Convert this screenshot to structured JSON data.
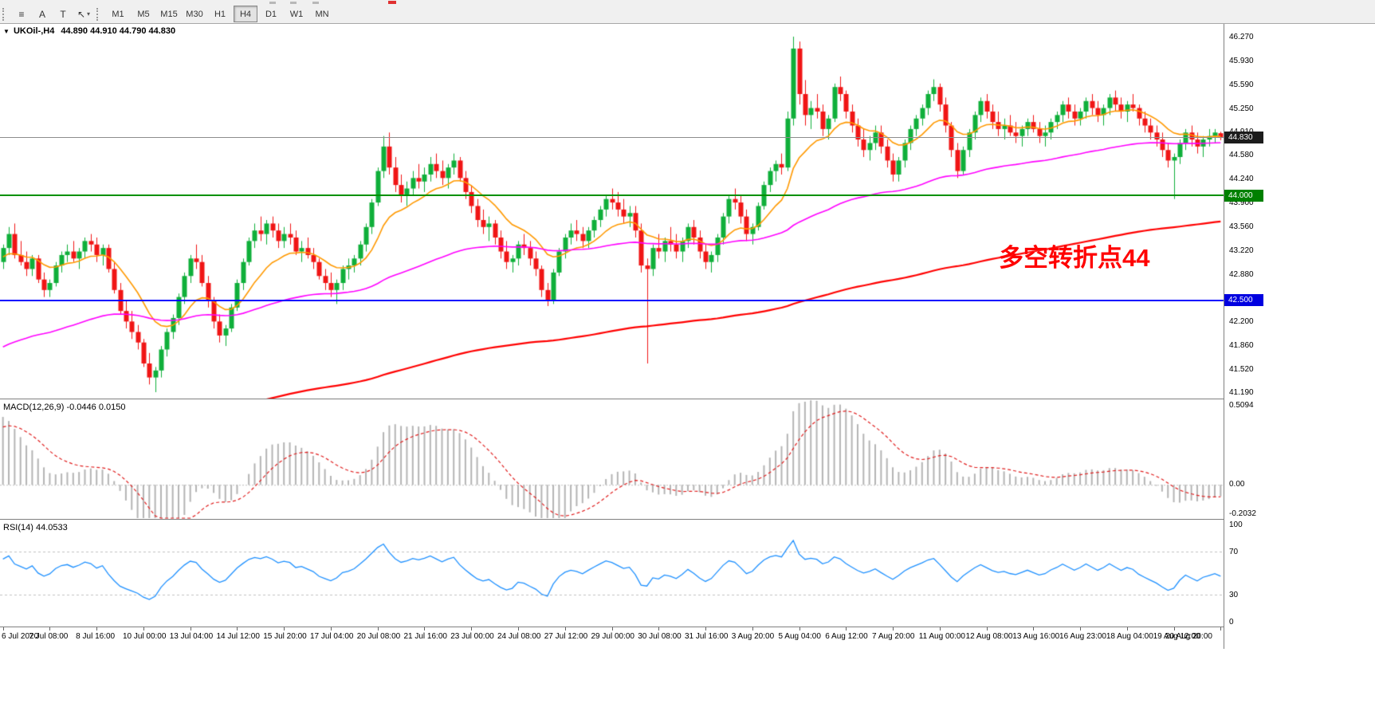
{
  "toolbar": {
    "tools": [
      {
        "name": "chart-windows-icon",
        "glyph": "≡"
      },
      {
        "name": "text-annotation-tool",
        "glyph": "A"
      },
      {
        "name": "type-tool",
        "glyph": "T"
      },
      {
        "name": "pointer-tool",
        "glyph": "↖",
        "caret": "▾"
      }
    ],
    "timeframes": [
      "M1",
      "M5",
      "M15",
      "M30",
      "H1",
      "H4",
      "D1",
      "W1",
      "MN"
    ],
    "active_timeframe": "H4"
  },
  "price_pane": {
    "symbol_label": "UKOil-,H4",
    "ohlc_label": "44.890 44.910 44.790 44.830",
    "collapse_icon": "▼",
    "axis_labels": [
      "46.270",
      "45.930",
      "45.590",
      "45.250",
      "44.910",
      "44.580",
      "44.240",
      "43.900",
      "43.560",
      "43.220",
      "42.880",
      "42.540",
      "42.200",
      "41.860",
      "41.520",
      "41.190"
    ],
    "price_tags": [
      {
        "text": "44.830",
        "price": 44.83,
        "bg": "#1c1c1c"
      },
      {
        "text": "44.000",
        "price": 44.0,
        "bg": "#008000"
      },
      {
        "text": "42.500",
        "price": 42.5,
        "bg": "#0000e0"
      }
    ],
    "hlines": [
      {
        "price": 44.83,
        "color": "#8c8c8c",
        "width": 1
      },
      {
        "price": 44.0,
        "color": "#009000",
        "width": 2
      },
      {
        "price": 42.5,
        "color": "#0000ff",
        "width": 2
      }
    ],
    "annotation": {
      "text": "多空转折点44",
      "color": "#ff0000"
    },
    "scale": {
      "pMax": 46.452,
      "pMin": 41.099
    }
  },
  "macd_pane": {
    "label": "MACD(12,26,9) -0.0446 0.0150",
    "axis_top": "0.5094",
    "axis_zero": "0.00",
    "axis_bottom": "-0.2032",
    "vMax": 0.5094,
    "vMin": -0.2032,
    "params": {
      "fast": 12,
      "slow": 26,
      "signal": 9
    }
  },
  "rsi_pane": {
    "label": "RSI(14) 44.0533",
    "axis_labels": [
      100,
      70,
      30,
      0
    ],
    "levels": [
      70,
      30
    ],
    "period": 14
  },
  "time_axis": {
    "bars_per_label": 8,
    "labels": [
      "6 Jul 2020",
      "7 Jul 08:00",
      "8 Jul 16:00",
      "10 Jul 00:00",
      "13 Jul 04:00",
      "14 Jul 12:00",
      "15 Jul 20:00",
      "17 Jul 04:00",
      "20 Jul 08:00",
      "21 Jul 16:00",
      "23 Jul 00:00",
      "24 Jul 08:00",
      "27 Jul 12:00",
      "29 Jul 00:00",
      "30 Jul 08:00",
      "31 Jul 16:00",
      "3 Aug 20:00",
      "5 Aug 04:00",
      "6 Aug 12:00",
      "7 Aug 20:00",
      "11 Aug 00:00",
      "12 Aug 08:00",
      "13 Aug 16:00",
      "16 Aug 23:00",
      "18 Aug 04:00",
      "19 Aug 12:00",
      "20 Aug 20:00"
    ]
  },
  "chart_data": {
    "type": "candlestick",
    "symbol": "UKOil-",
    "timeframe": "H4",
    "colors": {
      "up": "#0faf3a",
      "down": "#f01515",
      "ma_fast": "#ff9900",
      "ma_mid": "#ff00ff",
      "ma_slow": "#ff0000",
      "macd_hist": "#b4b4b4",
      "macd_signal": "#e01f1f",
      "rsi": "#1e90ff",
      "level_dash": "#c0c0c0"
    },
    "ma_seeds": {
      "fast": 43.1,
      "mid": 41.8,
      "slow": 40.3
    },
    "ma_alphas": {
      "fast": 0.143,
      "mid": 0.025,
      "slow": 0.0085
    },
    "macd_seeds": {
      "ema_fast": 43.4,
      "ema_slow": 42.95,
      "signal": 0.33
    },
    "candles": [
      [
        43.05,
        43.3,
        42.95,
        43.25
      ],
      [
        43.25,
        43.55,
        43.15,
        43.45
      ],
      [
        43.45,
        43.6,
        43.1,
        43.15
      ],
      [
        43.15,
        43.35,
        43.0,
        43.05
      ],
      [
        43.05,
        43.2,
        42.85,
        42.95
      ],
      [
        42.95,
        43.15,
        42.85,
        43.1
      ],
      [
        43.1,
        43.15,
        42.75,
        42.8
      ],
      [
        42.8,
        42.9,
        42.55,
        42.65
      ],
      [
        42.65,
        42.8,
        42.55,
        42.75
      ],
      [
        42.75,
        43.05,
        42.7,
        43.0
      ],
      [
        43.0,
        43.2,
        42.9,
        43.15
      ],
      [
        43.15,
        43.3,
        43.05,
        43.2
      ],
      [
        43.2,
        43.35,
        43.05,
        43.1
      ],
      [
        43.1,
        43.25,
        42.95,
        43.2
      ],
      [
        43.2,
        43.4,
        43.1,
        43.35
      ],
      [
        43.35,
        43.45,
        43.2,
        43.3
      ],
      [
        43.3,
        43.4,
        43.05,
        43.15
      ],
      [
        43.15,
        43.3,
        43.0,
        43.25
      ],
      [
        43.25,
        43.3,
        42.9,
        42.95
      ],
      [
        42.95,
        43.05,
        42.6,
        42.65
      ],
      [
        42.65,
        42.75,
        42.3,
        42.35
      ],
      [
        42.35,
        42.5,
        42.1,
        42.2
      ],
      [
        42.2,
        42.35,
        41.95,
        42.05
      ],
      [
        42.05,
        42.15,
        41.8,
        41.9
      ],
      [
        41.9,
        41.95,
        41.55,
        41.6
      ],
      [
        41.6,
        41.75,
        41.3,
        41.4
      ],
      [
        41.4,
        41.55,
        41.19,
        41.5
      ],
      [
        41.5,
        41.85,
        41.4,
        41.8
      ],
      [
        41.8,
        42.1,
        41.7,
        42.05
      ],
      [
        42.05,
        42.3,
        41.95,
        42.25
      ],
      [
        42.25,
        42.6,
        42.15,
        42.55
      ],
      [
        42.55,
        42.9,
        42.45,
        42.85
      ],
      [
        42.85,
        43.15,
        42.75,
        43.1
      ],
      [
        43.1,
        43.3,
        42.95,
        43.05
      ],
      [
        43.05,
        43.15,
        42.7,
        42.75
      ],
      [
        42.75,
        42.85,
        42.4,
        42.5
      ],
      [
        42.5,
        42.55,
        42.1,
        42.2
      ],
      [
        42.2,
        42.3,
        41.9,
        42.0
      ],
      [
        42.0,
        42.15,
        41.85,
        42.1
      ],
      [
        42.1,
        42.45,
        42.05,
        42.4
      ],
      [
        42.4,
        42.8,
        42.35,
        42.75
      ],
      [
        42.75,
        43.1,
        42.65,
        43.05
      ],
      [
        43.05,
        43.4,
        43.0,
        43.35
      ],
      [
        43.35,
        43.6,
        43.25,
        43.5
      ],
      [
        43.5,
        43.7,
        43.35,
        43.45
      ],
      [
        43.45,
        43.65,
        43.3,
        43.6
      ],
      [
        43.6,
        43.7,
        43.4,
        43.5
      ],
      [
        43.5,
        43.6,
        43.25,
        43.35
      ],
      [
        43.35,
        43.55,
        43.25,
        43.45
      ],
      [
        43.45,
        43.6,
        43.3,
        43.4
      ],
      [
        43.4,
        43.5,
        43.15,
        43.2
      ],
      [
        43.2,
        43.35,
        43.05,
        43.25
      ],
      [
        43.25,
        43.4,
        43.1,
        43.15
      ],
      [
        43.15,
        43.25,
        42.95,
        43.05
      ],
      [
        43.05,
        43.1,
        42.8,
        42.85
      ],
      [
        42.85,
        42.95,
        42.65,
        42.75
      ],
      [
        42.75,
        42.9,
        42.55,
        42.65
      ],
      [
        42.65,
        42.8,
        42.45,
        42.75
      ],
      [
        42.75,
        43.0,
        42.65,
        42.95
      ],
      [
        42.95,
        43.1,
        42.8,
        43.0
      ],
      [
        43.0,
        43.15,
        42.9,
        43.1
      ],
      [
        43.1,
        43.35,
        43.0,
        43.3
      ],
      [
        43.3,
        43.6,
        43.2,
        43.55
      ],
      [
        43.55,
        43.95,
        43.45,
        43.9
      ],
      [
        43.9,
        44.4,
        43.85,
        44.35
      ],
      [
        44.35,
        44.85,
        44.25,
        44.7
      ],
      [
        44.7,
        44.9,
        44.3,
        44.4
      ],
      [
        44.4,
        44.55,
        44.05,
        44.15
      ],
      [
        44.15,
        44.3,
        43.9,
        44.0
      ],
      [
        44.0,
        44.2,
        43.85,
        44.1
      ],
      [
        44.1,
        44.35,
        44.0,
        44.25
      ],
      [
        44.25,
        44.45,
        44.1,
        44.2
      ],
      [
        44.2,
        44.4,
        44.05,
        44.3
      ],
      [
        44.3,
        44.55,
        44.2,
        44.45
      ],
      [
        44.45,
        44.6,
        44.25,
        44.35
      ],
      [
        44.35,
        44.5,
        44.15,
        44.25
      ],
      [
        44.25,
        44.45,
        44.1,
        44.4
      ],
      [
        44.4,
        44.6,
        44.3,
        44.5
      ],
      [
        44.5,
        44.55,
        44.2,
        44.25
      ],
      [
        44.25,
        44.35,
        43.95,
        44.05
      ],
      [
        44.05,
        44.15,
        43.75,
        43.85
      ],
      [
        43.85,
        43.95,
        43.55,
        43.65
      ],
      [
        43.65,
        43.8,
        43.45,
        43.55
      ],
      [
        43.55,
        43.7,
        43.35,
        43.6
      ],
      [
        43.6,
        43.65,
        43.3,
        43.4
      ],
      [
        43.4,
        43.5,
        43.1,
        43.2
      ],
      [
        43.2,
        43.35,
        42.95,
        43.05
      ],
      [
        43.05,
        43.15,
        42.9,
        43.1
      ],
      [
        43.1,
        43.35,
        43.0,
        43.3
      ],
      [
        43.3,
        43.45,
        43.15,
        43.25
      ],
      [
        43.25,
        43.35,
        43.0,
        43.1
      ],
      [
        43.1,
        43.2,
        42.85,
        42.95
      ],
      [
        42.95,
        43.0,
        42.55,
        42.65
      ],
      [
        42.65,
        42.75,
        42.42,
        42.5
      ],
      [
        42.5,
        42.95,
        42.45,
        42.9
      ],
      [
        42.9,
        43.25,
        42.85,
        43.2
      ],
      [
        43.2,
        43.45,
        43.1,
        43.4
      ],
      [
        43.4,
        43.6,
        43.3,
        43.5
      ],
      [
        43.5,
        43.65,
        43.35,
        43.45
      ],
      [
        43.45,
        43.55,
        43.25,
        43.35
      ],
      [
        43.35,
        43.55,
        43.25,
        43.5
      ],
      [
        43.5,
        43.7,
        43.4,
        43.65
      ],
      [
        43.65,
        43.85,
        43.55,
        43.8
      ],
      [
        43.8,
        44.0,
        43.7,
        43.95
      ],
      [
        43.95,
        44.1,
        43.8,
        43.9
      ],
      [
        43.9,
        44.05,
        43.7,
        43.8
      ],
      [
        43.8,
        43.95,
        43.6,
        43.7
      ],
      [
        43.7,
        43.85,
        43.55,
        43.75
      ],
      [
        43.75,
        43.85,
        43.4,
        43.5
      ],
      [
        43.5,
        43.6,
        42.9,
        43.0
      ],
      [
        43.0,
        43.1,
        41.6,
        42.95
      ],
      [
        42.95,
        43.3,
        42.85,
        43.25
      ],
      [
        43.25,
        43.45,
        43.1,
        43.2
      ],
      [
        43.2,
        43.4,
        43.05,
        43.35
      ],
      [
        43.35,
        43.55,
        43.2,
        43.3
      ],
      [
        43.3,
        43.45,
        43.1,
        43.2
      ],
      [
        43.2,
        43.4,
        43.05,
        43.35
      ],
      [
        43.35,
        43.6,
        43.25,
        43.55
      ],
      [
        43.55,
        43.65,
        43.3,
        43.4
      ],
      [
        43.4,
        43.5,
        43.1,
        43.2
      ],
      [
        43.2,
        43.3,
        42.95,
        43.05
      ],
      [
        43.05,
        43.2,
        42.9,
        43.15
      ],
      [
        43.15,
        43.45,
        43.05,
        43.4
      ],
      [
        43.4,
        43.75,
        43.3,
        43.7
      ],
      [
        43.7,
        44.0,
        43.6,
        43.95
      ],
      [
        43.95,
        44.1,
        43.8,
        43.9
      ],
      [
        43.9,
        44.0,
        43.6,
        43.7
      ],
      [
        43.7,
        43.8,
        43.35,
        43.45
      ],
      [
        43.45,
        43.6,
        43.3,
        43.55
      ],
      [
        43.55,
        43.9,
        43.5,
        43.85
      ],
      [
        43.85,
        44.2,
        43.8,
        44.15
      ],
      [
        44.15,
        44.4,
        44.05,
        44.35
      ],
      [
        44.35,
        44.5,
        44.2,
        44.45
      ],
      [
        44.45,
        44.6,
        44.3,
        44.4
      ],
      [
        44.4,
        45.2,
        44.35,
        45.1
      ],
      [
        45.1,
        46.27,
        45.0,
        46.1
      ],
      [
        46.1,
        46.2,
        45.3,
        45.45
      ],
      [
        45.45,
        45.65,
        45.0,
        45.15
      ],
      [
        45.15,
        45.35,
        44.95,
        45.25
      ],
      [
        45.25,
        45.45,
        45.1,
        45.2
      ],
      [
        45.2,
        45.3,
        44.85,
        44.95
      ],
      [
        44.95,
        45.15,
        44.8,
        45.1
      ],
      [
        45.1,
        45.6,
        45.05,
        45.55
      ],
      [
        45.55,
        45.7,
        45.35,
        45.45
      ],
      [
        45.45,
        45.5,
        45.1,
        45.2
      ],
      [
        45.2,
        45.3,
        44.9,
        45.0
      ],
      [
        45.0,
        45.1,
        44.7,
        44.8
      ],
      [
        44.8,
        44.95,
        44.55,
        44.65
      ],
      [
        44.65,
        44.85,
        44.5,
        44.75
      ],
      [
        44.75,
        45.0,
        44.65,
        44.9
      ],
      [
        44.9,
        45.0,
        44.6,
        44.7
      ],
      [
        44.7,
        44.8,
        44.4,
        44.5
      ],
      [
        44.5,
        44.6,
        44.2,
        44.3
      ],
      [
        44.3,
        44.55,
        44.2,
        44.5
      ],
      [
        44.5,
        44.8,
        44.4,
        44.75
      ],
      [
        44.75,
        45.0,
        44.65,
        44.95
      ],
      [
        44.95,
        45.15,
        44.85,
        45.1
      ],
      [
        45.1,
        45.3,
        45.0,
        45.25
      ],
      [
        45.25,
        45.5,
        45.15,
        45.45
      ],
      [
        45.45,
        45.66,
        45.35,
        45.55
      ],
      [
        45.55,
        45.6,
        45.2,
        45.3
      ],
      [
        45.3,
        45.4,
        44.9,
        45.0
      ],
      [
        45.0,
        45.05,
        44.55,
        44.65
      ],
      [
        44.65,
        44.75,
        44.25,
        44.35
      ],
      [
        44.35,
        44.7,
        44.3,
        44.65
      ],
      [
        44.65,
        44.95,
        44.55,
        44.9
      ],
      [
        44.9,
        45.2,
        44.8,
        45.15
      ],
      [
        45.15,
        45.4,
        45.05,
        45.35
      ],
      [
        45.35,
        45.45,
        45.1,
        45.2
      ],
      [
        45.2,
        45.3,
        44.95,
        45.05
      ],
      [
        45.05,
        45.2,
        44.85,
        44.95
      ],
      [
        44.95,
        45.1,
        44.8,
        45.0
      ],
      [
        45.0,
        45.15,
        44.85,
        44.9
      ],
      [
        44.9,
        45.05,
        44.75,
        44.85
      ],
      [
        44.85,
        45.0,
        44.7,
        44.95
      ],
      [
        44.95,
        45.1,
        44.85,
        45.05
      ],
      [
        45.05,
        45.15,
        44.9,
        44.95
      ],
      [
        44.95,
        45.05,
        44.75,
        44.85
      ],
      [
        44.85,
        45.0,
        44.7,
        44.9
      ],
      [
        44.9,
        45.1,
        44.8,
        45.05
      ],
      [
        45.05,
        45.2,
        44.95,
        45.15
      ],
      [
        45.15,
        45.35,
        45.05,
        45.3
      ],
      [
        45.3,
        45.4,
        45.1,
        45.2
      ],
      [
        45.2,
        45.3,
        45.0,
        45.1
      ],
      [
        45.1,
        45.25,
        45.0,
        45.2
      ],
      [
        45.2,
        45.4,
        45.1,
        45.35
      ],
      [
        45.35,
        45.45,
        45.15,
        45.25
      ],
      [
        45.25,
        45.35,
        45.05,
        45.15
      ],
      [
        45.15,
        45.3,
        45.0,
        45.25
      ],
      [
        45.25,
        45.45,
        45.15,
        45.4
      ],
      [
        45.4,
        45.5,
        45.2,
        45.3
      ],
      [
        45.3,
        45.4,
        45.1,
        45.2
      ],
      [
        45.2,
        45.35,
        45.05,
        45.3
      ],
      [
        45.3,
        45.45,
        45.2,
        45.25
      ],
      [
        45.25,
        45.3,
        45.0,
        45.1
      ],
      [
        45.1,
        45.2,
        44.9,
        45.0
      ],
      [
        45.0,
        45.1,
        44.8,
        44.9
      ],
      [
        44.9,
        45.0,
        44.7,
        44.8
      ],
      [
        44.8,
        44.9,
        44.55,
        44.65
      ],
      [
        44.65,
        44.75,
        44.4,
        44.5
      ],
      [
        44.5,
        44.6,
        43.95,
        44.55
      ],
      [
        44.55,
        44.8,
        44.45,
        44.75
      ],
      [
        44.75,
        44.95,
        44.65,
        44.9
      ],
      [
        44.9,
        45.0,
        44.7,
        44.8
      ],
      [
        44.8,
        44.9,
        44.6,
        44.7
      ],
      [
        44.7,
        44.85,
        44.55,
        44.8
      ],
      [
        44.8,
        44.95,
        44.7,
        44.85
      ],
      [
        44.85,
        44.95,
        44.75,
        44.9
      ],
      [
        44.89,
        44.91,
        44.79,
        44.83
      ]
    ]
  }
}
